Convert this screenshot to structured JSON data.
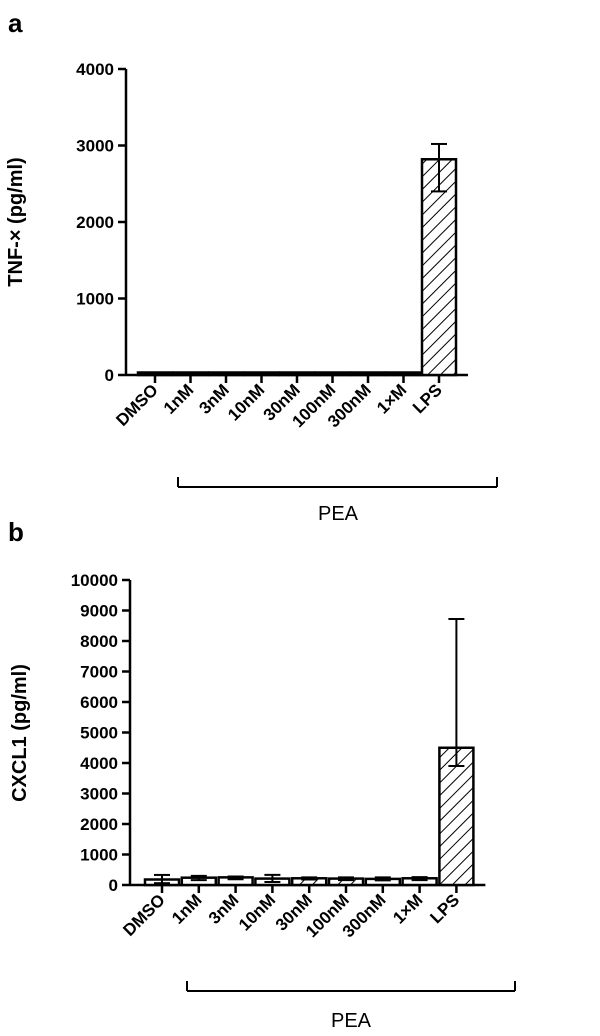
{
  "panel_a": {
    "letter": "a",
    "group_label": "PEA"
  },
  "panel_b": {
    "letter": "b",
    "group_label": "PEA"
  },
  "chart_data": [
    {
      "type": "bar",
      "title": "",
      "xlabel": "",
      "ylabel": "TNF-× (pg/ml)",
      "ylim": [
        0,
        4000
      ],
      "yticks": [
        0,
        1000,
        2000,
        3000,
        4000
      ],
      "categories": [
        "DMSO",
        "1nM",
        "3nM",
        "10nM",
        "30nM",
        "100nM",
        "300nM",
        "1×M",
        "LPS"
      ],
      "values": [
        5,
        5,
        5,
        5,
        5,
        5,
        5,
        5,
        2820
      ],
      "error_high": [
        5,
        5,
        5,
        5,
        5,
        5,
        5,
        5,
        3020
      ],
      "error_low": [
        0,
        0,
        0,
        0,
        0,
        0,
        0,
        0,
        2400
      ],
      "hatched": [
        false,
        false,
        false,
        false,
        false,
        false,
        false,
        false,
        true
      ],
      "grid": false
    },
    {
      "type": "bar",
      "title": "",
      "xlabel": "",
      "ylabel": "CXCL1 (pg/ml)",
      "ylim": [
        0,
        10000
      ],
      "yticks": [
        0,
        1000,
        2000,
        3000,
        4000,
        5000,
        6000,
        7000,
        8000,
        9000,
        10000
      ],
      "categories": [
        "DMSO",
        "1nM",
        "3nM",
        "10nM",
        "30nM",
        "100nM",
        "300nM",
        "1×M",
        "LPS"
      ],
      "values": [
        180,
        240,
        250,
        210,
        220,
        210,
        200,
        220,
        4500
      ],
      "error_high": [
        330,
        300,
        280,
        330,
        250,
        250,
        250,
        260,
        8720
      ],
      "error_low": [
        60,
        160,
        190,
        100,
        180,
        160,
        150,
        160,
        3900
      ],
      "hatched": [
        false,
        false,
        false,
        false,
        true,
        true,
        false,
        false,
        true
      ],
      "grid": false
    }
  ]
}
